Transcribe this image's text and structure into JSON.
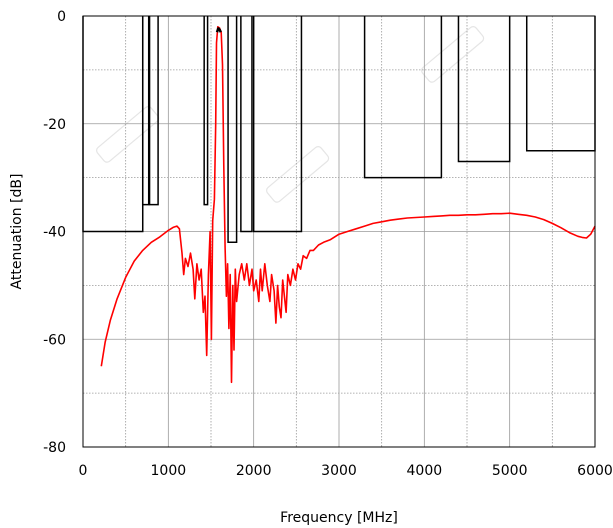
{
  "chart_data": {
    "type": "line",
    "title": "",
    "xlabel": "Frequency [MHz]",
    "ylabel": "Attenuation  [dB]",
    "xlim": [
      0,
      6000
    ],
    "ylim": [
      -80,
      0
    ],
    "x_ticks": [
      0,
      1000,
      2000,
      3000,
      4000,
      5000,
      6000
    ],
    "x_tick_labels": [
      "0",
      "1000",
      "2000",
      "3000",
      "4000",
      "5000",
      "6000"
    ],
    "y_ticks": [
      0,
      -20,
      -40,
      -60,
      -80
    ],
    "y_tick_labels": [
      "0",
      "-20",
      "-40",
      "-60",
      "-80"
    ],
    "minor_x_grid": [
      500,
      1500,
      2500,
      3500,
      4500,
      5500
    ],
    "minor_y_grid": [
      -10,
      -30,
      -50,
      -70
    ],
    "grid": true,
    "grid_color": "#9a9a9a",
    "series": [
      {
        "color": "#ff0000",
        "points": [
          [
            215,
            -65
          ],
          [
            260,
            -60.5
          ],
          [
            320,
            -56.5
          ],
          [
            400,
            -52.5
          ],
          [
            500,
            -48.5
          ],
          [
            600,
            -45.5
          ],
          [
            700,
            -43.5
          ],
          [
            800,
            -42
          ],
          [
            900,
            -41
          ],
          [
            1000,
            -39.8
          ],
          [
            1060,
            -39.2
          ],
          [
            1100,
            -39
          ],
          [
            1130,
            -39.5
          ],
          [
            1160,
            -44
          ],
          [
            1180,
            -48
          ],
          [
            1200,
            -45
          ],
          [
            1230,
            -46.5
          ],
          [
            1260,
            -44
          ],
          [
            1290,
            -47
          ],
          [
            1310,
            -52.5
          ],
          [
            1335,
            -46
          ],
          [
            1360,
            -49
          ],
          [
            1385,
            -47
          ],
          [
            1410,
            -55
          ],
          [
            1430,
            -52
          ],
          [
            1450,
            -63
          ],
          [
            1470,
            -48
          ],
          [
            1490,
            -40
          ],
          [
            1505,
            -60
          ],
          [
            1520,
            -38
          ],
          [
            1540,
            -34
          ],
          [
            1555,
            -20
          ],
          [
            1565,
            -5
          ],
          [
            1580,
            -2
          ],
          [
            1600,
            -2.2
          ],
          [
            1620,
            -3
          ],
          [
            1635,
            -9
          ],
          [
            1650,
            -28
          ],
          [
            1665,
            -43
          ],
          [
            1680,
            -52
          ],
          [
            1695,
            -46
          ],
          [
            1710,
            -58
          ],
          [
            1725,
            -48
          ],
          [
            1740,
            -68
          ],
          [
            1755,
            -50
          ],
          [
            1770,
            -62
          ],
          [
            1785,
            -47
          ],
          [
            1800,
            -53
          ],
          [
            1830,
            -48
          ],
          [
            1860,
            -46
          ],
          [
            1890,
            -49
          ],
          [
            1920,
            -46
          ],
          [
            1950,
            -50
          ],
          [
            1980,
            -47
          ],
          [
            2000,
            -51
          ],
          [
            2030,
            -49
          ],
          [
            2060,
            -53
          ],
          [
            2080,
            -47
          ],
          [
            2100,
            -51
          ],
          [
            2130,
            -46
          ],
          [
            2160,
            -50
          ],
          [
            2190,
            -53
          ],
          [
            2210,
            -48
          ],
          [
            2240,
            -51
          ],
          [
            2260,
            -57
          ],
          [
            2280,
            -50
          ],
          [
            2300,
            -54
          ],
          [
            2320,
            -56
          ],
          [
            2340,
            -49
          ],
          [
            2360,
            -52
          ],
          [
            2380,
            -55
          ],
          [
            2400,
            -48
          ],
          [
            2430,
            -50
          ],
          [
            2460,
            -47
          ],
          [
            2490,
            -49
          ],
          [
            2520,
            -46
          ],
          [
            2550,
            -47
          ],
          [
            2580,
            -44.5
          ],
          [
            2620,
            -45
          ],
          [
            2660,
            -43.5
          ],
          [
            2700,
            -43.5
          ],
          [
            2760,
            -42.5
          ],
          [
            2820,
            -42
          ],
          [
            2900,
            -41.5
          ],
          [
            3000,
            -40.5
          ],
          [
            3100,
            -40
          ],
          [
            3200,
            -39.5
          ],
          [
            3300,
            -39
          ],
          [
            3400,
            -38.5
          ],
          [
            3500,
            -38.2
          ],
          [
            3600,
            -37.9
          ],
          [
            3700,
            -37.7
          ],
          [
            3800,
            -37.5
          ],
          [
            3900,
            -37.4
          ],
          [
            4000,
            -37.3
          ],
          [
            4100,
            -37.2
          ],
          [
            4200,
            -37.1
          ],
          [
            4300,
            -37
          ],
          [
            4400,
            -37
          ],
          [
            4500,
            -36.9
          ],
          [
            4600,
            -36.9
          ],
          [
            4700,
            -36.8
          ],
          [
            4800,
            -36.7
          ],
          [
            4900,
            -36.7
          ],
          [
            5000,
            -36.6
          ],
          [
            5100,
            -36.8
          ],
          [
            5200,
            -37
          ],
          [
            5300,
            -37.3
          ],
          [
            5400,
            -37.8
          ],
          [
            5500,
            -38.5
          ],
          [
            5600,
            -39.3
          ],
          [
            5700,
            -40.2
          ],
          [
            5800,
            -40.9
          ],
          [
            5850,
            -41.1
          ],
          [
            5900,
            -41.2
          ],
          [
            5950,
            -40.5
          ],
          [
            6000,
            -39
          ]
        ]
      },
      {
        "color": "#000000",
        "points": [
          [
            1570,
            -3
          ],
          [
            1585,
            -2.3
          ],
          [
            1600,
            -2.5
          ],
          [
            1615,
            -3
          ]
        ]
      }
    ],
    "mask": {
      "color": "#000000",
      "boxes": [
        [
          0,
          700,
          -40
        ],
        [
          700,
          770,
          -35
        ],
        [
          780,
          880,
          -35
        ],
        [
          1420,
          1460,
          -35
        ],
        [
          1700,
          1800,
          -42
        ],
        [
          1850,
          1980,
          -40
        ],
        [
          2000,
          2560,
          -40
        ],
        [
          3300,
          4200,
          -30
        ],
        [
          4400,
          5000,
          -27
        ],
        [
          5200,
          6000,
          -25
        ]
      ]
    }
  }
}
